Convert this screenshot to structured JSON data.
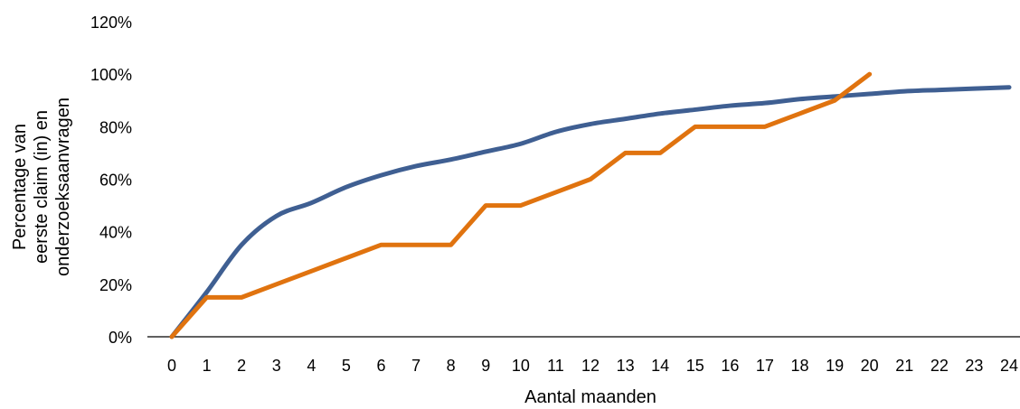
{
  "chart_data": {
    "type": "line",
    "title": "",
    "xlabel": "Aantal maanden",
    "ylabel_lines": [
      "Percentage van",
      "eerste claim (in) en",
      "onderzoeksaanvragen"
    ],
    "xlim": [
      0,
      24
    ],
    "ylim": [
      0,
      1.2
    ],
    "x_ticks": [
      "0",
      "1",
      "2",
      "3",
      "4",
      "5",
      "6",
      "7",
      "8",
      "9",
      "10",
      "11",
      "12",
      "13",
      "14",
      "15",
      "16",
      "17",
      "18",
      "19",
      "20",
      "21",
      "22",
      "23",
      "24"
    ],
    "y_ticks": [
      {
        "value": 0,
        "label": "0%"
      },
      {
        "value": 0.2,
        "label": "20%"
      },
      {
        "value": 0.4,
        "label": "40%"
      },
      {
        "value": 0.6,
        "label": "60%"
      },
      {
        "value": 0.8,
        "label": "80%"
      },
      {
        "value": 1.0,
        "label": "100%"
      },
      {
        "value": 1.2,
        "label": "120%"
      }
    ],
    "grid": false,
    "legend": "none",
    "series": [
      {
        "color": "#3f5f92",
        "smooth": true,
        "x": [
          0,
          1,
          2,
          3,
          4,
          5,
          6,
          7,
          8,
          9,
          10,
          11,
          12,
          13,
          14,
          15,
          16,
          17,
          18,
          19,
          20,
          21,
          22,
          23,
          24
        ],
        "values": [
          0,
          0.17,
          0.35,
          0.46,
          0.51,
          0.57,
          0.615,
          0.65,
          0.675,
          0.705,
          0.735,
          0.78,
          0.81,
          0.83,
          0.85,
          0.865,
          0.88,
          0.89,
          0.905,
          0.915,
          0.925,
          0.935,
          0.94,
          0.945,
          0.95
        ]
      },
      {
        "color": "#e0730f",
        "smooth": false,
        "x": [
          0,
          1,
          2,
          3,
          4,
          5,
          6,
          7,
          8,
          9,
          10,
          11,
          12,
          13,
          14,
          15,
          16,
          17,
          18,
          19,
          20
        ],
        "values": [
          0,
          0.15,
          0.15,
          0.2,
          0.25,
          0.3,
          0.35,
          0.35,
          0.35,
          0.5,
          0.5,
          0.55,
          0.6,
          0.7,
          0.7,
          0.8,
          0.8,
          0.8,
          0.85,
          0.9,
          1.0
        ]
      }
    ]
  }
}
